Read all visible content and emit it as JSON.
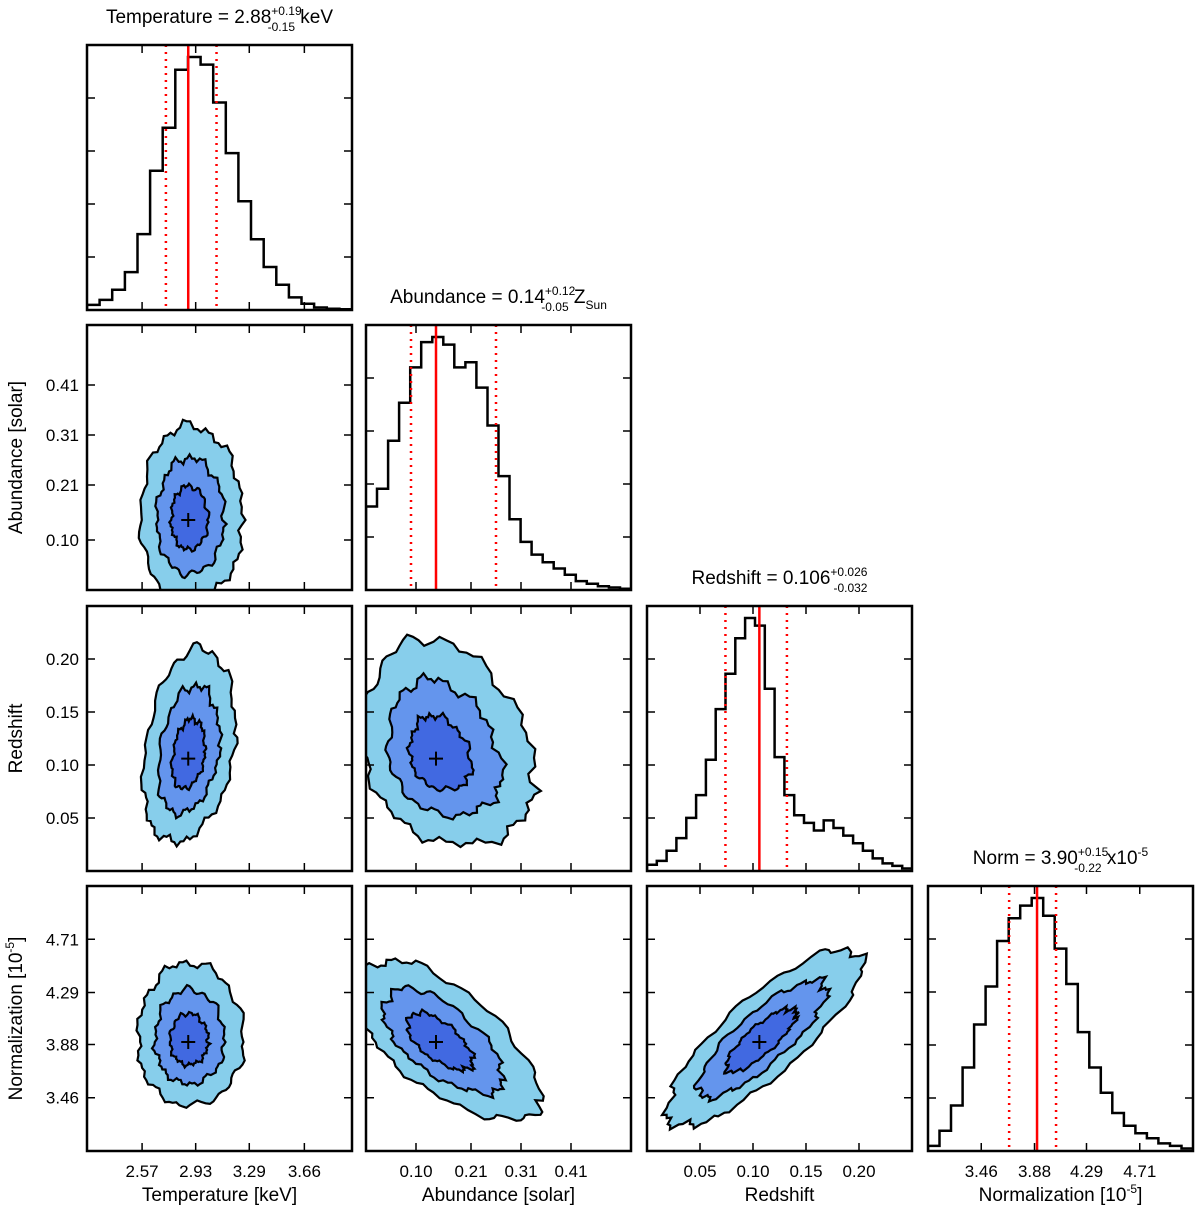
{
  "colors": {
    "outer": "#87ceeb",
    "middle": "#6495ed",
    "inner": "#4169e1",
    "median": "#ff0000",
    "frame": "#000000",
    "background": "#ffffff"
  },
  "chart_data": {
    "type": "corner",
    "parameters": [
      {
        "key": "temperature",
        "name": "Temperature",
        "axis_label": "Temperature [keV]",
        "range": [
          2.2,
          3.98
        ],
        "ticks": [
          2.57,
          2.93,
          3.29,
          3.66
        ],
        "tick_labels": [
          "2.57",
          "2.93",
          "3.29",
          "3.66"
        ],
        "median": 2.88,
        "lower_1sigma": 2.73,
        "upper_1sigma": 3.07,
        "title_prefix": "Temperature = 2.88",
        "title_plus": "+0.19",
        "title_minus": "-0.15",
        "title_suffix": " keV"
      },
      {
        "key": "abundance",
        "name": "Abundance",
        "axis_label": "Abundance [solar]",
        "range": [
          0.0,
          0.53
        ],
        "ticks": [
          0.1,
          0.21,
          0.31,
          0.41
        ],
        "tick_labels": [
          "0.10",
          "0.21",
          "0.31",
          "0.41"
        ],
        "median": 0.14,
        "lower_1sigma": 0.09,
        "upper_1sigma": 0.26,
        "title_prefix": "Abundance = 0.14",
        "title_plus": "+0.12",
        "title_minus": "-0.05",
        "title_suffix": " Z",
        "title_suffix_sub": "Sun"
      },
      {
        "key": "redshift",
        "name": "Redshift",
        "axis_label": "Redshift",
        "range": [
          0.0,
          0.25
        ],
        "ticks": [
          0.05,
          0.1,
          0.15,
          0.2
        ],
        "tick_labels": [
          "0.05",
          "0.10",
          "0.15",
          "0.20"
        ],
        "median": 0.106,
        "lower_1sigma": 0.074,
        "upper_1sigma": 0.132,
        "title_prefix": "Redshift = 0.106",
        "title_plus": "+0.026",
        "title_minus": "-0.032",
        "title_suffix": ""
      },
      {
        "key": "normalization",
        "name": "Norm",
        "axis_label": "Normalization [10",
        "axis_label_sup": "-5",
        "axis_label_end": "]",
        "range": [
          3.04,
          5.13
        ],
        "ticks": [
          3.46,
          3.88,
          4.29,
          4.71
        ],
        "tick_labels": [
          "3.46",
          "3.88",
          "4.29",
          "4.71"
        ],
        "median": 3.9,
        "lower_1sigma": 3.68,
        "upper_1sigma": 4.05,
        "title_prefix": "Norm = 3.90",
        "title_plus": "+0.15",
        "title_minus": "-0.22",
        "title_suffix": " x10",
        "title_suffix_sup": "-5"
      }
    ],
    "histograms": {
      "temperature": [
        0.02,
        0.04,
        0.08,
        0.15,
        0.3,
        0.55,
        0.72,
        0.95,
        1.0,
        0.97,
        0.82,
        0.62,
        0.43,
        0.28,
        0.17,
        0.1,
        0.05,
        0.025,
        0.01,
        0.005,
        0.003
      ],
      "abundance": [
        0.33,
        0.4,
        0.59,
        0.74,
        0.88,
        0.98,
        1.0,
        0.97,
        0.88,
        0.9,
        0.8,
        0.65,
        0.45,
        0.28,
        0.19,
        0.14,
        0.11,
        0.085,
        0.06,
        0.035,
        0.025,
        0.015,
        0.01,
        0.005
      ],
      "redshift": [
        0.025,
        0.04,
        0.08,
        0.13,
        0.21,
        0.3,
        0.44,
        0.64,
        0.78,
        0.92,
        1.0,
        0.97,
        0.72,
        0.45,
        0.3,
        0.22,
        0.19,
        0.16,
        0.2,
        0.17,
        0.14,
        0.11,
        0.08,
        0.05,
        0.03,
        0.02,
        0.01
      ],
      "normalization": [
        0.02,
        0.08,
        0.18,
        0.33,
        0.5,
        0.65,
        0.83,
        0.92,
        0.97,
        1.0,
        0.93,
        0.8,
        0.66,
        0.47,
        0.33,
        0.23,
        0.15,
        0.1,
        0.07,
        0.05,
        0.03,
        0.02,
        0.01
      ]
    },
    "contour_levels": [
      "outer",
      "middle",
      "inner"
    ],
    "contour_layout": "2D posterior contours (blue shades) with cross at the median in each lower-triangle panel"
  }
}
